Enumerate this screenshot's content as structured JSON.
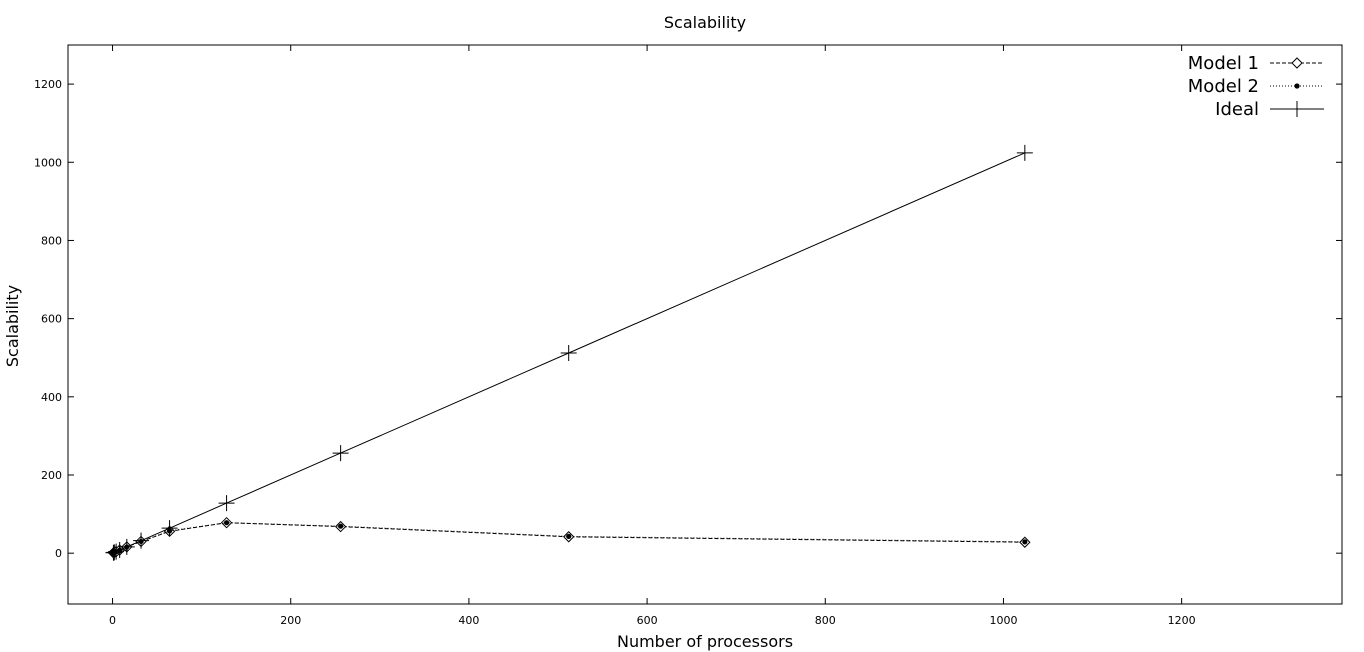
{
  "chart_data": {
    "type": "line",
    "title": "Scalability",
    "xlabel": "Number of processors",
    "ylabel": "Scalability",
    "xlim": [
      -50,
      1380
    ],
    "ylim": [
      -130,
      1300
    ],
    "xticks": [
      0,
      200,
      400,
      600,
      800,
      1000,
      1200
    ],
    "yticks": [
      0,
      200,
      400,
      600,
      800,
      1000,
      1200
    ],
    "grid": false,
    "legend_position": "top-right",
    "x": [
      1,
      2,
      4,
      8,
      16,
      32,
      64,
      128,
      256,
      512,
      1024
    ],
    "series": [
      {
        "name": "Model 1",
        "line": "dashed",
        "marker": "diamond",
        "values": [
          1,
          2,
          4,
          8,
          16,
          30,
          56,
          78,
          68,
          42,
          28
        ]
      },
      {
        "name": "Model 2",
        "line": "dotted",
        "marker": "dot",
        "values": [
          1,
          2,
          4,
          8,
          16,
          30,
          57,
          78,
          69,
          43,
          29
        ]
      },
      {
        "name": "Ideal",
        "line": "solid",
        "marker": "plus",
        "values": [
          1,
          2,
          4,
          8,
          16,
          32,
          64,
          128,
          256,
          512,
          1024
        ]
      }
    ]
  }
}
